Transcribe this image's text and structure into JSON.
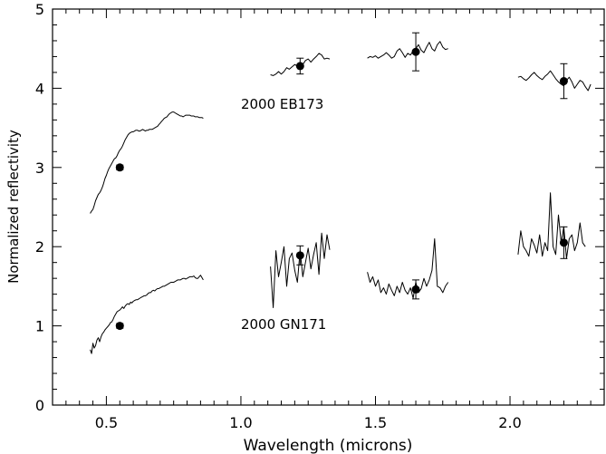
{
  "chart_data": {
    "type": "scatter",
    "xlabel": "Wavelength (microns)",
    "ylabel": "Normalized reflectivity",
    "xlim": [
      0.3,
      2.35
    ],
    "ylim": [
      0,
      5
    ],
    "x_ticks": [
      0.5,
      1.0,
      1.5,
      2.0
    ],
    "x_tick_labels": [
      "0.5",
      "1.0",
      "1.5",
      "2.0"
    ],
    "y_ticks": [
      0,
      1,
      2,
      3,
      4,
      5
    ],
    "y_tick_labels": [
      "0",
      "1",
      "2",
      "3",
      "4",
      "5"
    ],
    "grid": false,
    "annotations": [
      {
        "text": "2000 EB173",
        "x": 1.0,
        "y": 3.74
      },
      {
        "text": "2000 GN171",
        "x": 1.0,
        "y": 0.96
      }
    ],
    "series": [
      {
        "name": "2000 EB173",
        "points": [
          {
            "x": 0.55,
            "y": 3.0,
            "err": 0.03
          },
          {
            "x": 1.22,
            "y": 4.28,
            "err": 0.1
          },
          {
            "x": 1.65,
            "y": 4.46,
            "err": 0.24
          },
          {
            "x": 2.2,
            "y": 4.09,
            "err": 0.22
          }
        ],
        "spectra": [
          {
            "x_range": [
              0.44,
              0.86
            ],
            "step": 0.005,
            "y": [
              2.42,
              2.45,
              2.47,
              2.52,
              2.58,
              2.62,
              2.66,
              2.68,
              2.71,
              2.75,
              2.8,
              2.86,
              2.9,
              2.95,
              2.99,
              3.02,
              3.05,
              3.08,
              3.11,
              3.12,
              3.15,
              3.19,
              3.22,
              3.24,
              3.27,
              3.31,
              3.35,
              3.38,
              3.41,
              3.43,
              3.44,
              3.45,
              3.45,
              3.46,
              3.47,
              3.47,
              3.46,
              3.46,
              3.47,
              3.48,
              3.47,
              3.46,
              3.47,
              3.47,
              3.48,
              3.48,
              3.48,
              3.49,
              3.5,
              3.51,
              3.52,
              3.54,
              3.56,
              3.58,
              3.6,
              3.62,
              3.63,
              3.64,
              3.66,
              3.68,
              3.69,
              3.7,
              3.7,
              3.69,
              3.68,
              3.67,
              3.66,
              3.65,
              3.65,
              3.64,
              3.65,
              3.66,
              3.66,
              3.66,
              3.66,
              3.65,
              3.65,
              3.65,
              3.64,
              3.64,
              3.64,
              3.63,
              3.63,
              3.63,
              3.62
            ]
          },
          {
            "x_range": [
              1.11,
              1.33
            ],
            "step": 0.01,
            "y": [
              4.17,
              4.16,
              4.18,
              4.21,
              4.18,
              4.21,
              4.26,
              4.24,
              4.27,
              4.3,
              4.28,
              4.25,
              4.3,
              4.35,
              4.37,
              4.33,
              4.37,
              4.4,
              4.44,
              4.42,
              4.37,
              4.38,
              4.37
            ]
          },
          {
            "x_range": [
              1.47,
              1.77
            ],
            "step": 0.01,
            "y": [
              4.38,
              4.4,
              4.39,
              4.41,
              4.38,
              4.4,
              4.42,
              4.45,
              4.42,
              4.38,
              4.4,
              4.47,
              4.5,
              4.45,
              4.39,
              4.44,
              4.42,
              4.47,
              4.5,
              4.55,
              4.48,
              4.45,
              4.52,
              4.58,
              4.5,
              4.47,
              4.55,
              4.59,
              4.52,
              4.49,
              4.5
            ]
          },
          {
            "x_range": [
              2.03,
              2.3
            ],
            "step": 0.01,
            "y": [
              4.14,
              4.15,
              4.12,
              4.1,
              4.13,
              4.17,
              4.2,
              4.16,
              4.13,
              4.11,
              4.15,
              4.18,
              4.22,
              4.17,
              4.12,
              4.08,
              4.05,
              4.03,
              4.1,
              4.14,
              4.08,
              4.0,
              4.05,
              4.1,
              4.08,
              4.02,
              3.97,
              4.05
            ]
          }
        ]
      },
      {
        "name": "2000 GN171",
        "points": [
          {
            "x": 0.55,
            "y": 1.0,
            "err": 0.03
          },
          {
            "x": 1.22,
            "y": 1.89,
            "err": 0.12
          },
          {
            "x": 1.65,
            "y": 1.46,
            "err": 0.12
          },
          {
            "x": 2.2,
            "y": 2.05,
            "err": 0.2
          }
        ],
        "spectra": [
          {
            "x_range": [
              0.44,
              0.86
            ],
            "step": 0.005,
            "y": [
              0.7,
              0.65,
              0.78,
              0.72,
              0.75,
              0.82,
              0.85,
              0.8,
              0.86,
              0.9,
              0.92,
              0.95,
              0.97,
              0.99,
              1.01,
              1.04,
              1.05,
              1.08,
              1.12,
              1.15,
              1.18,
              1.19,
              1.2,
              1.22,
              1.24,
              1.22,
              1.25,
              1.27,
              1.28,
              1.27,
              1.3,
              1.29,
              1.31,
              1.32,
              1.33,
              1.33,
              1.34,
              1.35,
              1.36,
              1.37,
              1.38,
              1.38,
              1.39,
              1.41,
              1.42,
              1.42,
              1.44,
              1.45,
              1.44,
              1.46,
              1.47,
              1.47,
              1.48,
              1.49,
              1.5,
              1.5,
              1.51,
              1.52,
              1.53,
              1.54,
              1.55,
              1.55,
              1.55,
              1.56,
              1.57,
              1.58,
              1.58,
              1.58,
              1.59,
              1.6,
              1.6,
              1.59,
              1.6,
              1.61,
              1.62,
              1.62,
              1.62,
              1.63,
              1.61,
              1.6,
              1.6,
              1.62,
              1.64,
              1.61,
              1.58
            ]
          },
          {
            "x_range": [
              1.11,
              1.33
            ],
            "step": 0.01,
            "y": [
              1.75,
              1.23,
              1.95,
              1.62,
              1.8,
              2.0,
              1.5,
              1.85,
              1.92,
              1.7,
              1.55,
              1.95,
              1.62,
              1.8,
              1.98,
              1.72,
              1.9,
              2.05,
              1.65,
              2.17,
              1.85,
              2.15,
              1.96
            ]
          },
          {
            "x_range": [
              1.47,
              1.77
            ],
            "step": 0.01,
            "y": [
              1.68,
              1.55,
              1.62,
              1.5,
              1.58,
              1.42,
              1.48,
              1.4,
              1.53,
              1.45,
              1.38,
              1.5,
              1.42,
              1.55,
              1.45,
              1.4,
              1.48,
              1.35,
              1.55,
              1.42,
              1.47,
              1.6,
              1.5,
              1.58,
              1.7,
              2.1,
              1.5,
              1.48,
              1.42,
              1.5,
              1.55
            ]
          },
          {
            "x_range": [
              2.03,
              2.28
            ],
            "step": 0.01,
            "y": [
              1.9,
              2.2,
              2.0,
              1.95,
              1.88,
              2.1,
              2.02,
              1.92,
              2.15,
              1.88,
              2.05,
              1.95,
              2.68,
              2.0,
              1.9,
              2.4,
              2.05,
              2.25,
              1.85,
              2.1,
              2.15,
              1.95,
              2.05,
              2.3,
              2.05,
              2.0
            ]
          }
        ]
      }
    ]
  }
}
